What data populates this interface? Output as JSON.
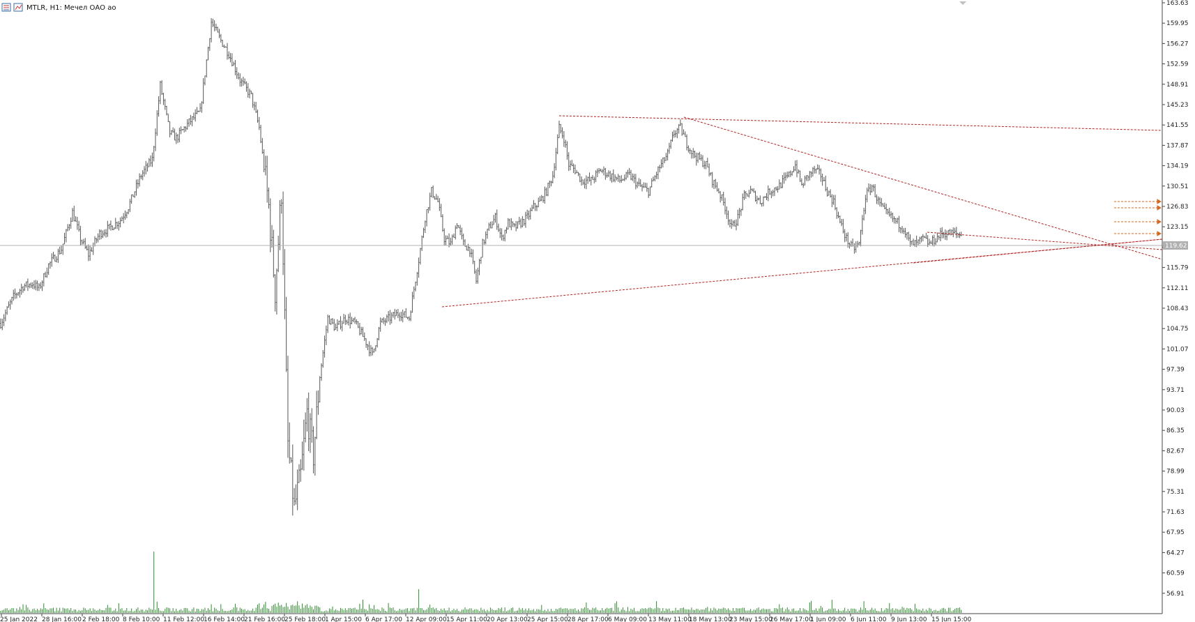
{
  "window": {
    "symbol_label": "MTLR, H1:  Мечел ОАО ао",
    "current_price_label": "119.62",
    "icons": [
      "chart-bars-icon",
      "chart-candles-icon"
    ]
  },
  "colors": {
    "background": "#ffffff",
    "price_bars": "#555555",
    "volume_bars": "#2e8b2e",
    "trendlines": "#b22222",
    "arrow_lines": "#d2691e",
    "price_line": "#b0b0b0",
    "price_tag_bg": "#b0b0b0"
  },
  "chart_data": {
    "type": "ohlc-bar",
    "ylim": [
      52.0,
      163.63
    ],
    "y_ticks": [
      "163.63",
      "159.95",
      "156.27",
      "152.59",
      "148.91",
      "145.23",
      "141.55",
      "137.87",
      "134.19",
      "130.51",
      "126.83",
      "123.15",
      "119.47",
      "115.79",
      "112.11",
      "108.43",
      "104.75",
      "101.07",
      "97.39",
      "93.71",
      "90.03",
      "86.35",
      "82.67",
      "78.99",
      "75.31",
      "71.63",
      "67.95",
      "64.27",
      "60.59",
      "56.91"
    ],
    "x_ticks": [
      "25 Jan 2022",
      "28 Jan 16:00",
      "2 Feb 18:00",
      "8 Feb 10:00",
      "11 Feb 12:00",
      "16 Feb 14:00",
      "21 Feb 16:00",
      "25 Feb 18:00",
      "1 Apr 15:00",
      "6 Apr 17:00",
      "12 Apr 09:00",
      "15 Apr 11:00",
      "20 Apr 13:00",
      "25 Apr 15:00",
      "28 Apr 17:00",
      "6 May 09:00",
      "13 May 11:00",
      "18 May 13:00",
      "23 May 15:00",
      "26 May 17:00",
      "1 Jun 09:00",
      "6 Jun 11:00",
      "9 Jun 13:00",
      "15 Jun 15:00"
    ],
    "current_price": 119.62,
    "price_anchors": [
      [
        0,
        103
      ],
      [
        8,
        108
      ],
      [
        14,
        110
      ],
      [
        20,
        110.5
      ],
      [
        24,
        109.5
      ],
      [
        30,
        114
      ],
      [
        38,
        117
      ],
      [
        45,
        124
      ],
      [
        50,
        119
      ],
      [
        55,
        116
      ],
      [
        62,
        120
      ],
      [
        68,
        121
      ],
      [
        75,
        122.5
      ],
      [
        80,
        125
      ],
      [
        88,
        131
      ],
      [
        95,
        134
      ],
      [
        100,
        148
      ],
      [
        106,
        139
      ],
      [
        110,
        138
      ],
      [
        118,
        141
      ],
      [
        125,
        143
      ],
      [
        132,
        160
      ],
      [
        137,
        157
      ],
      [
        143,
        154
      ],
      [
        150,
        149
      ],
      [
        157,
        146
      ],
      [
        162,
        140
      ],
      [
        168,
        125
      ],
      [
        172,
        109
      ],
      [
        176,
        128
      ],
      [
        180,
        80
      ],
      [
        184,
        68
      ],
      [
        188,
        74
      ],
      [
        192,
        86
      ],
      [
        196,
        78
      ],
      [
        200,
        93
      ],
      [
        205,
        104
      ],
      [
        210,
        102
      ],
      [
        216,
        104
      ],
      [
        222,
        103
      ],
      [
        228,
        100
      ],
      [
        233,
        97
      ],
      [
        238,
        103
      ],
      [
        244,
        104
      ],
      [
        250,
        105
      ],
      [
        256,
        104
      ],
      [
        262,
        115
      ],
      [
        266,
        123
      ],
      [
        270,
        128
      ],
      [
        274,
        126
      ],
      [
        278,
        119
      ],
      [
        282,
        118
      ],
      [
        286,
        122
      ],
      [
        290,
        118
      ],
      [
        294,
        117
      ],
      [
        298,
        111
      ],
      [
        302,
        118
      ],
      [
        306,
        121
      ],
      [
        310,
        123
      ],
      [
        314,
        119
      ],
      [
        318,
        122
      ],
      [
        322,
        121
      ],
      [
        326,
        122
      ],
      [
        330,
        123
      ],
      [
        334,
        125
      ],
      [
        338,
        126
      ],
      [
        342,
        128
      ],
      [
        346,
        131
      ],
      [
        350,
        140
      ],
      [
        353,
        138
      ],
      [
        356,
        133
      ],
      [
        360,
        132
      ],
      [
        364,
        130
      ],
      [
        370,
        130
      ],
      [
        376,
        132
      ],
      [
        382,
        131
      ],
      [
        388,
        130
      ],
      [
        394,
        131
      ],
      [
        400,
        129
      ],
      [
        406,
        128
      ],
      [
        412,
        132
      ],
      [
        418,
        135
      ],
      [
        422,
        139
      ],
      [
        426,
        140
      ],
      [
        430,
        137
      ],
      [
        434,
        135
      ],
      [
        438,
        134
      ],
      [
        442,
        133
      ],
      [
        446,
        130
      ],
      [
        450,
        128
      ],
      [
        454,
        125
      ],
      [
        458,
        121
      ],
      [
        462,
        123
      ],
      [
        466,
        127
      ],
      [
        470,
        128
      ],
      [
        476,
        126
      ],
      [
        482,
        128
      ],
      [
        488,
        129
      ],
      [
        494,
        131
      ],
      [
        498,
        133
      ],
      [
        502,
        129
      ],
      [
        506,
        131
      ],
      [
        510,
        132
      ],
      [
        514,
        131
      ],
      [
        518,
        128
      ],
      [
        522,
        126
      ],
      [
        526,
        122
      ],
      [
        530,
        119
      ],
      [
        534,
        117
      ],
      [
        538,
        118
      ],
      [
        542,
        127
      ],
      [
        546,
        129
      ],
      [
        550,
        126
      ],
      [
        554,
        124
      ],
      [
        558,
        123
      ],
      [
        562,
        122
      ],
      [
        566,
        121
      ],
      [
        570,
        118
      ],
      [
        574,
        118
      ],
      [
        578,
        119
      ],
      [
        582,
        118
      ],
      [
        586,
        119
      ],
      [
        590,
        120
      ],
      [
        594,
        120
      ],
      [
        598,
        120
      ],
      [
        602,
        119.62
      ]
    ],
    "n_bars": 603,
    "volume_spike_index": 96
  },
  "drawings": {
    "trendlines": [
      {
        "name": "upper-resistance-line"
      },
      {
        "name": "descending-resistance-line"
      },
      {
        "name": "ascending-support-line"
      },
      {
        "name": "short-support-line"
      },
      {
        "name": "short-resistance-line"
      }
    ],
    "arrow_count": 4
  }
}
